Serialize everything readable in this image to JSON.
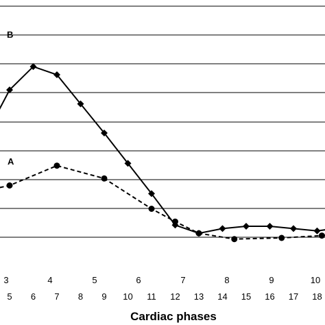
{
  "chart_data": {
    "type": "line",
    "title": "",
    "xlabel": "Cardiac phases",
    "ylabel": "",
    "grid": true,
    "x_primary_ticks": [
      "3",
      "4",
      "5",
      "6",
      "7",
      "8",
      "9",
      "10"
    ],
    "x_secondary_ticks": [
      "5",
      "6",
      "7",
      "8",
      "9",
      "10",
      "11",
      "12",
      "13",
      "14",
      "15",
      "16",
      "17",
      "18"
    ],
    "series": [
      {
        "name": "B",
        "style": "solid",
        "marker": "diamond",
        "color": "#000000",
        "x": [
          4.3,
          5,
          6,
          7,
          8,
          9,
          10,
          11,
          12,
          13,
          14,
          15,
          16,
          17,
          18,
          18.7
        ],
        "y": [
          5.0,
          7.7,
          9.7,
          9.0,
          6.5,
          4.0,
          1.4,
          -1.2,
          -3.9,
          -4.6,
          -4.2,
          -4.0,
          -4.0,
          -4.2,
          -4.4,
          -4.2
        ]
      },
      {
        "name": "A",
        "style": "dashed",
        "marker": "circle",
        "color": "#000000",
        "x": [
          4.3,
          5,
          7,
          9,
          11,
          12,
          13,
          14.5,
          16.5,
          18.2,
          18.7
        ],
        "y": [
          -0.8,
          -0.5,
          1.2,
          0.1,
          -2.5,
          -3.6,
          -4.6,
          -5.1,
          -5.0,
          -4.8,
          -4.7
        ]
      }
    ]
  }
}
